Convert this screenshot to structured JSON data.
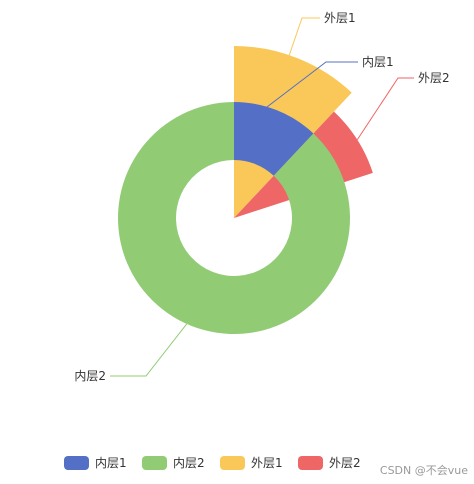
{
  "chart_data": {
    "type": "pie",
    "title": "",
    "inner_series": [
      {
        "name": "内层1",
        "value": 12,
        "color": "#5470c6"
      },
      {
        "name": "内层2",
        "value": 88,
        "color": "#91cc75"
      }
    ],
    "outer_series": [
      {
        "name": "外层1",
        "value": 12,
        "color": "#fac858"
      },
      {
        "name": "外层2",
        "value": 8,
        "color": "#ee6666"
      }
    ],
    "legend": {
      "position": "bottom",
      "items": [
        {
          "name": "内层1",
          "color": "#5470c6"
        },
        {
          "name": "内层2",
          "color": "#91cc75"
        },
        {
          "name": "外层1",
          "color": "#fac858"
        },
        {
          "name": "外层2",
          "color": "#ee6666"
        }
      ]
    }
  },
  "watermark": "CSDN @不会vue"
}
